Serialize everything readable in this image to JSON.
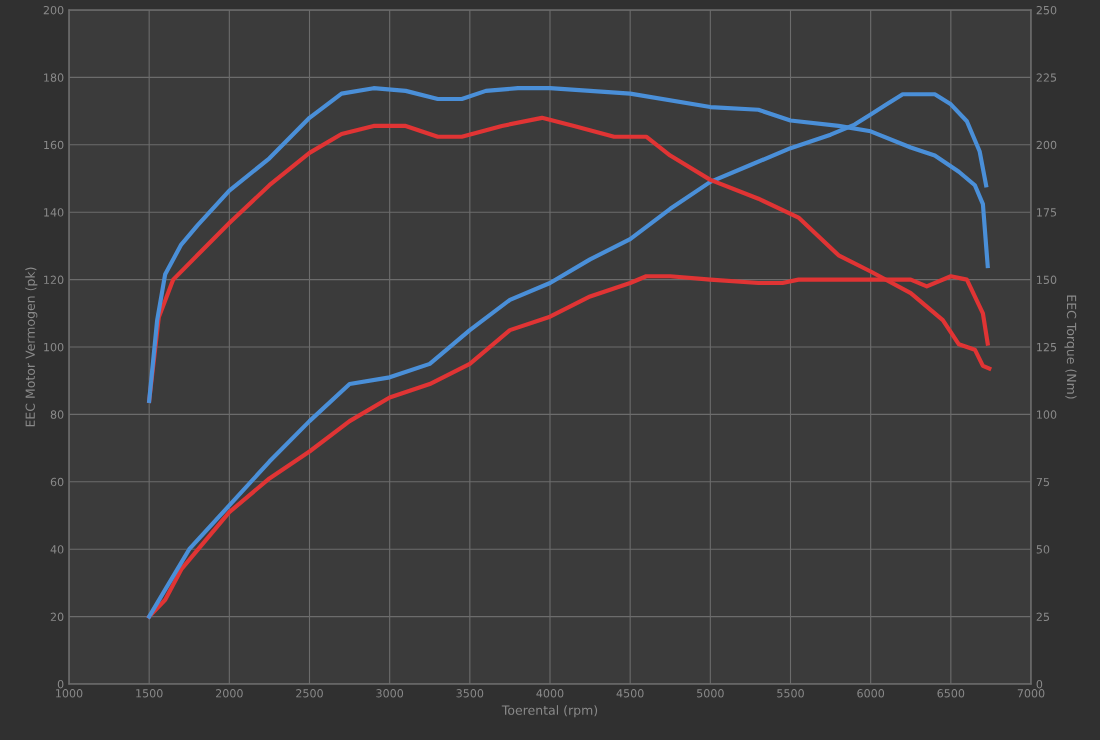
{
  "chart_data": {
    "type": "line",
    "xlabel": "Toerental (rpm)",
    "ylabel": "EEC Motor Vermogen (pk)",
    "y2label": "EEC Torque (Nm)",
    "xlim": [
      1000,
      7000
    ],
    "xticks": [
      1000,
      1500,
      2000,
      2500,
      3000,
      3500,
      4000,
      4500,
      5000,
      5500,
      6000,
      6500,
      7000
    ],
    "ylim": [
      0,
      200
    ],
    "yticks": [
      0,
      20,
      40,
      60,
      80,
      100,
      120,
      140,
      160,
      180,
      200
    ],
    "y2lim": [
      0,
      250
    ],
    "y2ticks": [
      0,
      25,
      50,
      75,
      100,
      125,
      150,
      175,
      200,
      225,
      250
    ],
    "grid": true,
    "legend": false,
    "marker": "none",
    "line_style": "solid",
    "series": [
      {
        "color": "#e03434",
        "x": [
          1500,
          1600,
          1700,
          2000,
          2250,
          2500,
          2750,
          3000,
          3250,
          3500,
          3750,
          4000,
          4250,
          4500,
          4600,
          4750,
          5000,
          5300,
          5450,
          5550,
          6000,
          6250,
          6350,
          6500,
          6600,
          6700,
          6730
        ],
        "values": [
          20,
          25,
          34,
          51,
          61,
          69,
          78,
          85,
          89,
          95,
          105,
          109,
          115,
          119,
          121,
          121,
          120,
          119,
          119,
          120,
          120,
          120,
          118,
          121,
          120,
          110,
          101
        ]
      },
      {
        "color": "#4a8fd8",
        "x": [
          1500,
          1600,
          1750,
          2000,
          2250,
          2500,
          2750,
          3000,
          3250,
          3500,
          3750,
          4000,
          4250,
          4500,
          4750,
          5000,
          5250,
          5500,
          5750,
          5900,
          6000,
          6100,
          6200,
          6400,
          6500,
          6600,
          6680,
          6720
        ],
        "values": [
          20,
          28,
          40,
          53,
          66,
          78,
          89,
          91,
          95,
          105,
          114,
          119,
          126,
          132,
          141,
          149,
          154,
          159,
          163,
          166,
          169,
          172,
          175,
          175,
          172,
          167,
          158,
          148
        ]
      },
      {
        "color": "#e03434",
        "axis": "y2",
        "x": [
          1500,
          1560,
          1650,
          1800,
          2000,
          2250,
          2500,
          2700,
          2900,
          3100,
          3300,
          3450,
          3700,
          3950,
          4150,
          4400,
          4600,
          4750,
          5000,
          5300,
          5550,
          5800,
          6000,
          6250,
          6450,
          6550,
          6650,
          6700,
          6740
        ],
        "values": [
          105,
          136,
          150,
          159,
          171,
          185,
          197,
          204,
          207,
          207,
          203,
          203,
          207,
          210,
          207,
          203,
          203,
          196,
          187,
          180,
          173,
          159,
          153,
          145,
          135,
          126,
          124,
          118,
          117
        ]
      },
      {
        "color": "#4a8fd8",
        "axis": "y2",
        "x": [
          1500,
          1550,
          1600,
          1700,
          1800,
          2000,
          2250,
          2500,
          2700,
          2900,
          3100,
          3300,
          3450,
          3600,
          3800,
          4000,
          4500,
          5000,
          5300,
          5500,
          5800,
          6000,
          6250,
          6400,
          6550,
          6650,
          6700,
          6730
        ],
        "values": [
          105,
          135,
          152,
          163,
          170,
          183,
          195,
          210,
          219,
          221,
          220,
          217,
          217,
          220,
          221,
          221,
          219,
          214,
          213,
          209,
          207,
          205,
          199,
          196,
          190,
          185,
          178,
          155
        ]
      }
    ]
  }
}
